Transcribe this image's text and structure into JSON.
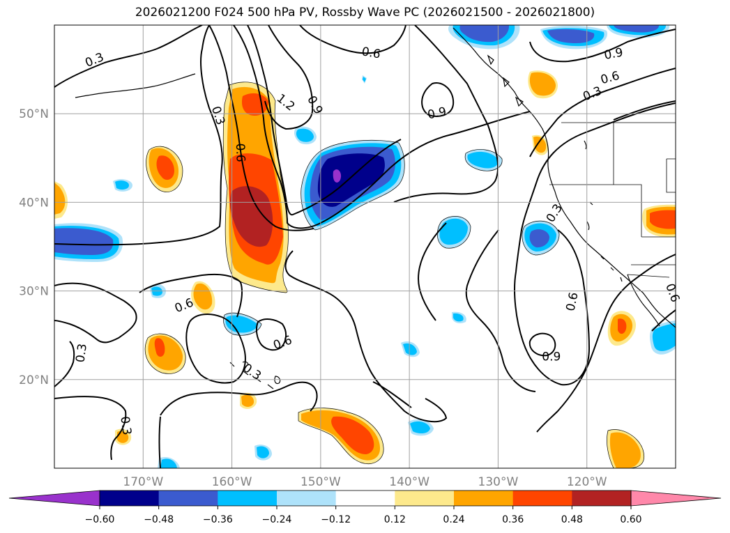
{
  "title": "2026021200 F024 500 hPa PV, Rossby Wave PC (2026021500 - 2026021800)",
  "map": {
    "lon_range": [
      -180,
      -110
    ],
    "lat_range": [
      10,
      60
    ],
    "lon_ticks": [
      {
        "lon": -170,
        "label": "170°W"
      },
      {
        "lon": -160,
        "label": "160°W"
      },
      {
        "lon": -150,
        "label": "150°W"
      },
      {
        "lon": -140,
        "label": "140°W"
      },
      {
        "lon": -130,
        "label": "130°W"
      },
      {
        "lon": -120,
        "label": "120°W"
      }
    ],
    "lat_ticks": [
      {
        "lat": 20,
        "label": "20°N"
      },
      {
        "lat": 30,
        "label": "30°N"
      },
      {
        "lat": 40,
        "label": "40°N"
      },
      {
        "lat": 50,
        "label": "50°N"
      }
    ],
    "grid": true
  },
  "colorbar": {
    "boundaries": [
      "−0.60",
      "−0.48",
      "−0.36",
      "−0.24",
      "−0.12",
      "0.12",
      "0.24",
      "0.36",
      "0.48",
      "0.60"
    ],
    "colors": [
      "#9932cc",
      "#00008b",
      "#3b5bcf",
      "#00bfff",
      "#aee2fa",
      "#ffffff",
      "#fde98c",
      "#ffa500",
      "#ff4500",
      "#b22222",
      "#ff88aa"
    ],
    "extend": "both"
  },
  "contour_labels": [
    {
      "text": "0.3",
      "lon": -175.5,
      "lat": 56.1,
      "rot": -22
    },
    {
      "text": "0.6",
      "lon": -144.3,
      "lat": 56.9,
      "rot": 10
    },
    {
      "text": "1.2",
      "lon": -153.9,
      "lat": 51.3,
      "rot": 38
    },
    {
      "text": "0.9",
      "lon": -150.6,
      "lat": 51.0,
      "rot": 62
    },
    {
      "text": "0.3",
      "lon": -161.5,
      "lat": 49.8,
      "rot": 72
    },
    {
      "text": "0.6",
      "lon": -159.0,
      "lat": 45.6,
      "rot": 88
    },
    {
      "text": "0.9",
      "lon": -136.9,
      "lat": 50.1,
      "rot": -12
    },
    {
      "text": "0.9",
      "lon": -117.0,
      "lat": 56.8,
      "rot": -10
    },
    {
      "text": "0.6",
      "lon": -117.4,
      "lat": 54.1,
      "rot": -15
    },
    {
      "text": "0.3",
      "lon": -119.4,
      "lat": 52.3,
      "rot": -22
    },
    {
      "text": "0.3",
      "lon": -123.7,
      "lat": 38.8,
      "rot": -58
    },
    {
      "text": "0.6",
      "lon": -121.7,
      "lat": 28.8,
      "rot": -78
    },
    {
      "text": "0.9",
      "lon": -124.0,
      "lat": 22.6,
      "rot": 0
    },
    {
      "text": "0.6",
      "lon": -165.4,
      "lat": 28.4,
      "rot": -22
    },
    {
      "text": "0.6",
      "lon": -154.3,
      "lat": 24.2,
      "rot": -20
    },
    {
      "text": "0.3",
      "lon": -157.7,
      "lat": 20.9,
      "rot": 35
    },
    {
      "text": "0.3",
      "lon": -177.0,
      "lat": 23.0,
      "rot": -82
    },
    {
      "text": "0.3",
      "lon": -171.9,
      "lat": 14.8,
      "rot": 82
    },
    {
      "text": "0.6",
      "lon": -110.3,
      "lat": 29.8,
      "rot": 70
    }
  ]
}
